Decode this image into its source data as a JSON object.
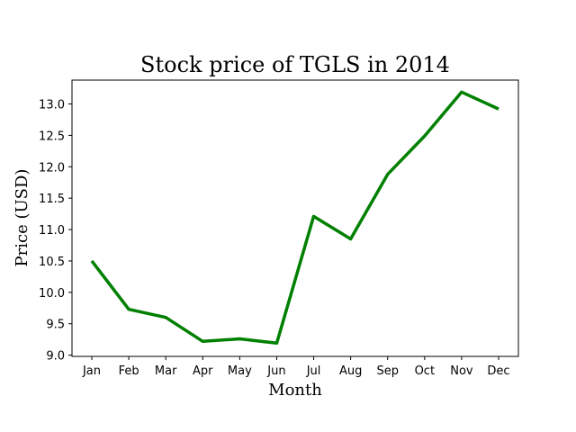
{
  "chart_data": {
    "type": "line",
    "title": "Stock price of TGLS in 2014",
    "xlabel": "Month",
    "ylabel": "Price (USD)",
    "categories": [
      "Jan",
      "Feb",
      "Mar",
      "Apr",
      "May",
      "Jun",
      "Jul",
      "Aug",
      "Sep",
      "Oct",
      "Nov",
      "Dec"
    ],
    "series": [
      {
        "values": [
          10.5,
          9.73,
          9.6,
          9.22,
          9.26,
          9.19,
          11.21,
          10.85,
          11.88,
          12.49,
          13.19,
          12.92
        ],
        "color": "#008000"
      }
    ],
    "ylim": [
      8.98,
      13.38
    ],
    "yticks": [
      "9.0",
      "9.5",
      "10.0",
      "10.5",
      "11.0",
      "11.5",
      "12.0",
      "12.5",
      "13.0"
    ],
    "grid": false,
    "legend": "none"
  }
}
